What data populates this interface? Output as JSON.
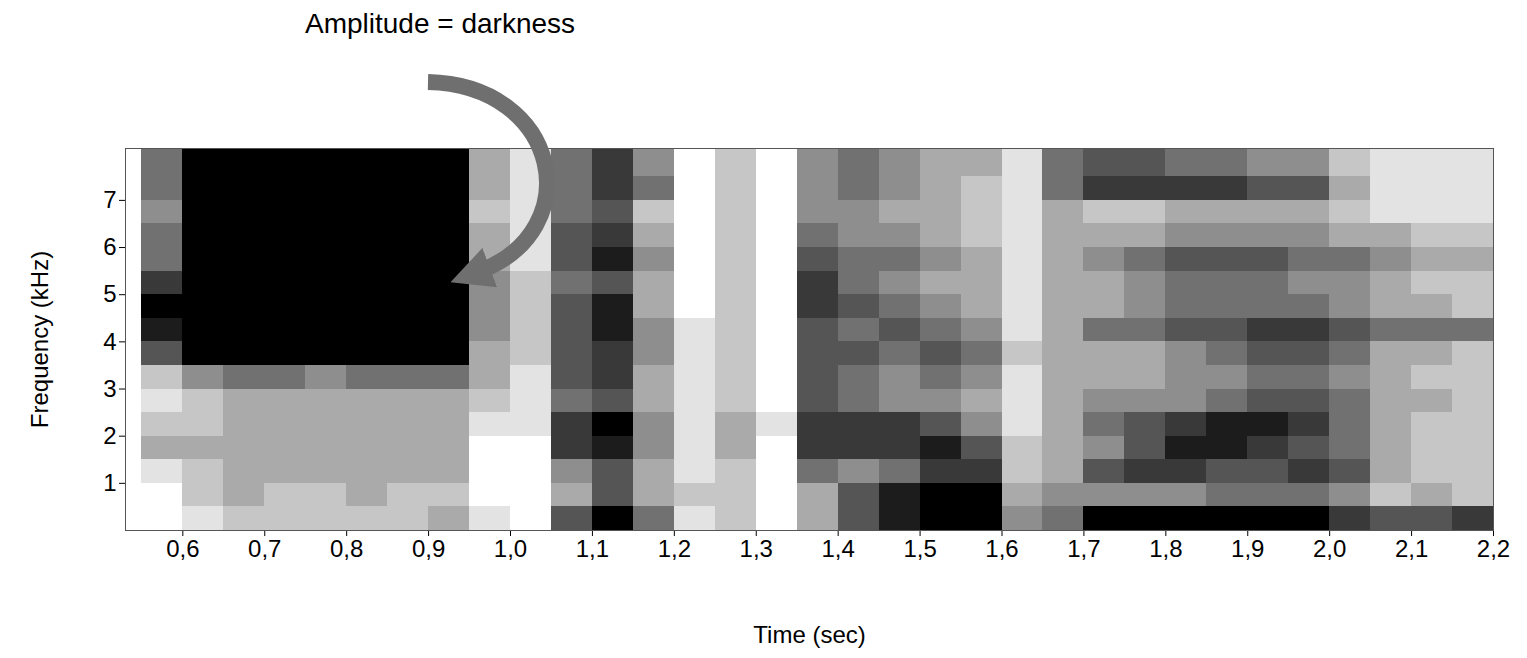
{
  "chart_data": {
    "type": "heatmap",
    "annotation": "Amplitude = darkness",
    "xlabel": "Time (sec)",
    "ylabel": "Frequency (kHz)",
    "xlim": [
      0.53,
      2.2
    ],
    "xticks": [
      {
        "value": 0.6,
        "label": "0,6"
      },
      {
        "value": 0.7,
        "label": "0,7"
      },
      {
        "value": 0.8,
        "label": "0,8"
      },
      {
        "value": 0.9,
        "label": "0,9"
      },
      {
        "value": 1.0,
        "label": "1,0"
      },
      {
        "value": 1.1,
        "label": "1,1"
      },
      {
        "value": 1.2,
        "label": "1,2"
      },
      {
        "value": 1.3,
        "label": "1,3"
      },
      {
        "value": 1.4,
        "label": "1,4"
      },
      {
        "value": 1.5,
        "label": "1,5"
      },
      {
        "value": 1.6,
        "label": "1,6"
      },
      {
        "value": 1.7,
        "label": "1,7"
      },
      {
        "value": 1.8,
        "label": "1,8"
      },
      {
        "value": 1.9,
        "label": "1,9"
      },
      {
        "value": 2.0,
        "label": "2,0"
      },
      {
        "value": 2.1,
        "label": "2,1"
      },
      {
        "value": 2.2,
        "label": "2,2"
      }
    ],
    "ylim": [
      0,
      8.1
    ],
    "yticks": [
      1,
      2,
      3,
      4,
      5,
      6,
      7
    ],
    "time_edges": [
      0.53,
      0.55,
      0.6,
      0.65,
      0.7,
      0.75,
      0.8,
      0.85,
      0.9,
      0.95,
      1.0,
      1.05,
      1.1,
      1.15,
      1.2,
      1.25,
      1.3,
      1.35,
      1.4,
      1.45,
      1.5,
      1.55,
      1.6,
      1.65,
      1.7,
      1.75,
      1.8,
      1.85,
      1.9,
      1.95,
      2.0,
      2.05,
      2.1,
      2.15,
      2.2
    ],
    "frequency_edges": [
      0,
      0.5,
      1,
      1.5,
      2,
      2.5,
      3,
      3.5,
      4,
      4.5,
      5,
      5.5,
      6,
      6.5,
      7,
      7.5,
      8.1
    ],
    "amplitude_lim": [
      0,
      9
    ],
    "amplitude": [
      [
        0,
        0,
        0,
        0,
        0,
        0,
        0,
        0,
        0,
        0,
        0,
        0,
        0,
        0,
        0,
        0
      ],
      [
        0,
        0,
        1,
        3,
        2,
        1,
        2,
        6,
        8,
        9,
        7,
        5,
        5,
        4,
        5,
        5
      ],
      [
        1,
        2,
        2,
        3,
        2,
        2,
        4,
        9,
        9,
        9,
        9,
        9,
        9,
        9,
        9,
        9
      ],
      [
        2,
        3,
        3,
        3,
        3,
        3,
        5,
        9,
        9,
        9,
        9,
        9,
        9,
        9,
        9,
        9
      ],
      [
        2,
        2,
        3,
        3,
        3,
        3,
        5,
        9,
        9,
        9,
        9,
        9,
        9,
        9,
        9,
        9
      ],
      [
        2,
        2,
        3,
        3,
        3,
        3,
        4,
        9,
        9,
        9,
        9,
        9,
        9,
        9,
        9,
        9
      ],
      [
        2,
        3,
        3,
        3,
        3,
        3,
        5,
        9,
        9,
        9,
        9,
        9,
        9,
        9,
        9,
        9
      ],
      [
        2,
        2,
        3,
        3,
        3,
        3,
        5,
        9,
        9,
        9,
        9,
        9,
        9,
        9,
        9,
        9
      ],
      [
        3,
        2,
        3,
        3,
        3,
        3,
        5,
        9,
        9,
        9,
        9,
        9,
        9,
        9,
        9,
        9
      ],
      [
        1,
        0,
        0,
        0,
        1,
        2,
        3,
        3,
        4,
        4,
        4,
        3,
        3,
        2,
        3,
        3
      ],
      [
        0,
        0,
        0,
        0,
        1,
        1,
        1,
        2,
        2,
        2,
        2,
        1,
        1,
        1,
        1,
        1
      ],
      [
        6,
        3,
        4,
        7,
        7,
        5,
        6,
        6,
        6,
        6,
        5,
        6,
        6,
        5,
        5,
        5
      ],
      [
        9,
        6,
        6,
        8,
        9,
        6,
        7,
        7,
        8,
        8,
        6,
        8,
        7,
        6,
        7,
        7
      ],
      [
        5,
        3,
        3,
        4,
        4,
        3,
        3,
        4,
        4,
        3,
        3,
        4,
        3,
        2,
        5,
        4
      ],
      [
        1,
        2,
        1,
        1,
        1,
        1,
        1,
        1,
        1,
        0,
        0,
        0,
        0,
        0,
        0,
        0
      ],
      [
        2,
        2,
        2,
        3,
        3,
        2,
        2,
        2,
        2,
        2,
        2,
        2,
        2,
        2,
        2,
        2
      ],
      [
        0,
        0,
        0,
        0,
        1,
        0,
        0,
        0,
        0,
        0,
        0,
        0,
        0,
        0,
        0,
        0
      ],
      [
        3,
        3,
        5,
        7,
        7,
        6,
        6,
        6,
        6,
        7,
        7,
        6,
        5,
        4,
        4,
        4
      ],
      [
        6,
        6,
        4,
        7,
        7,
        5,
        5,
        6,
        5,
        6,
        5,
        5,
        4,
        4,
        5,
        5
      ],
      [
        8,
        8,
        5,
        7,
        7,
        4,
        4,
        5,
        6,
        5,
        4,
        5,
        4,
        3,
        4,
        4
      ],
      [
        9,
        9,
        7,
        8,
        6,
        4,
        5,
        6,
        5,
        4,
        3,
        4,
        3,
        3,
        3,
        3
      ],
      [
        9,
        9,
        7,
        6,
        4,
        3,
        4,
        5,
        4,
        3,
        3,
        3,
        2,
        2,
        2,
        3
      ],
      [
        4,
        3,
        2,
        2,
        1,
        1,
        1,
        2,
        1,
        1,
        1,
        1,
        1,
        1,
        1,
        1
      ],
      [
        5,
        4,
        3,
        3,
        3,
        3,
        3,
        3,
        3,
        3,
        3,
        3,
        3,
        3,
        5,
        5
      ],
      [
        9,
        4,
        6,
        4,
        5,
        4,
        3,
        3,
        5,
        3,
        3,
        4,
        3,
        2,
        7,
        6
      ],
      [
        9,
        4,
        7,
        6,
        6,
        4,
        3,
        3,
        5,
        4,
        4,
        5,
        3,
        2,
        7,
        6
      ],
      [
        9,
        4,
        7,
        8,
        7,
        4,
        4,
        4,
        6,
        5,
        5,
        6,
        4,
        3,
        7,
        5
      ],
      [
        9,
        5,
        6,
        8,
        8,
        5,
        4,
        5,
        6,
        5,
        5,
        6,
        4,
        3,
        7,
        5
      ],
      [
        9,
        5,
        6,
        7,
        8,
        6,
        5,
        6,
        7,
        5,
        5,
        6,
        4,
        3,
        6,
        4
      ],
      [
        9,
        5,
        7,
        6,
        7,
        6,
        5,
        6,
        7,
        5,
        4,
        5,
        4,
        3,
        6,
        4
      ],
      [
        7,
        4,
        6,
        5,
        5,
        5,
        4,
        5,
        6,
        4,
        4,
        5,
        3,
        2,
        3,
        2
      ],
      [
        6,
        2,
        3,
        3,
        3,
        3,
        3,
        3,
        5,
        3,
        3,
        4,
        3,
        1,
        1,
        1
      ],
      [
        6,
        3,
        2,
        2,
        2,
        3,
        2,
        3,
        5,
        3,
        2,
        3,
        2,
        1,
        1,
        1
      ],
      [
        7,
        2,
        2,
        2,
        2,
        2,
        2,
        2,
        5,
        2,
        2,
        3,
        2,
        1,
        1,
        1
      ]
    ]
  }
}
